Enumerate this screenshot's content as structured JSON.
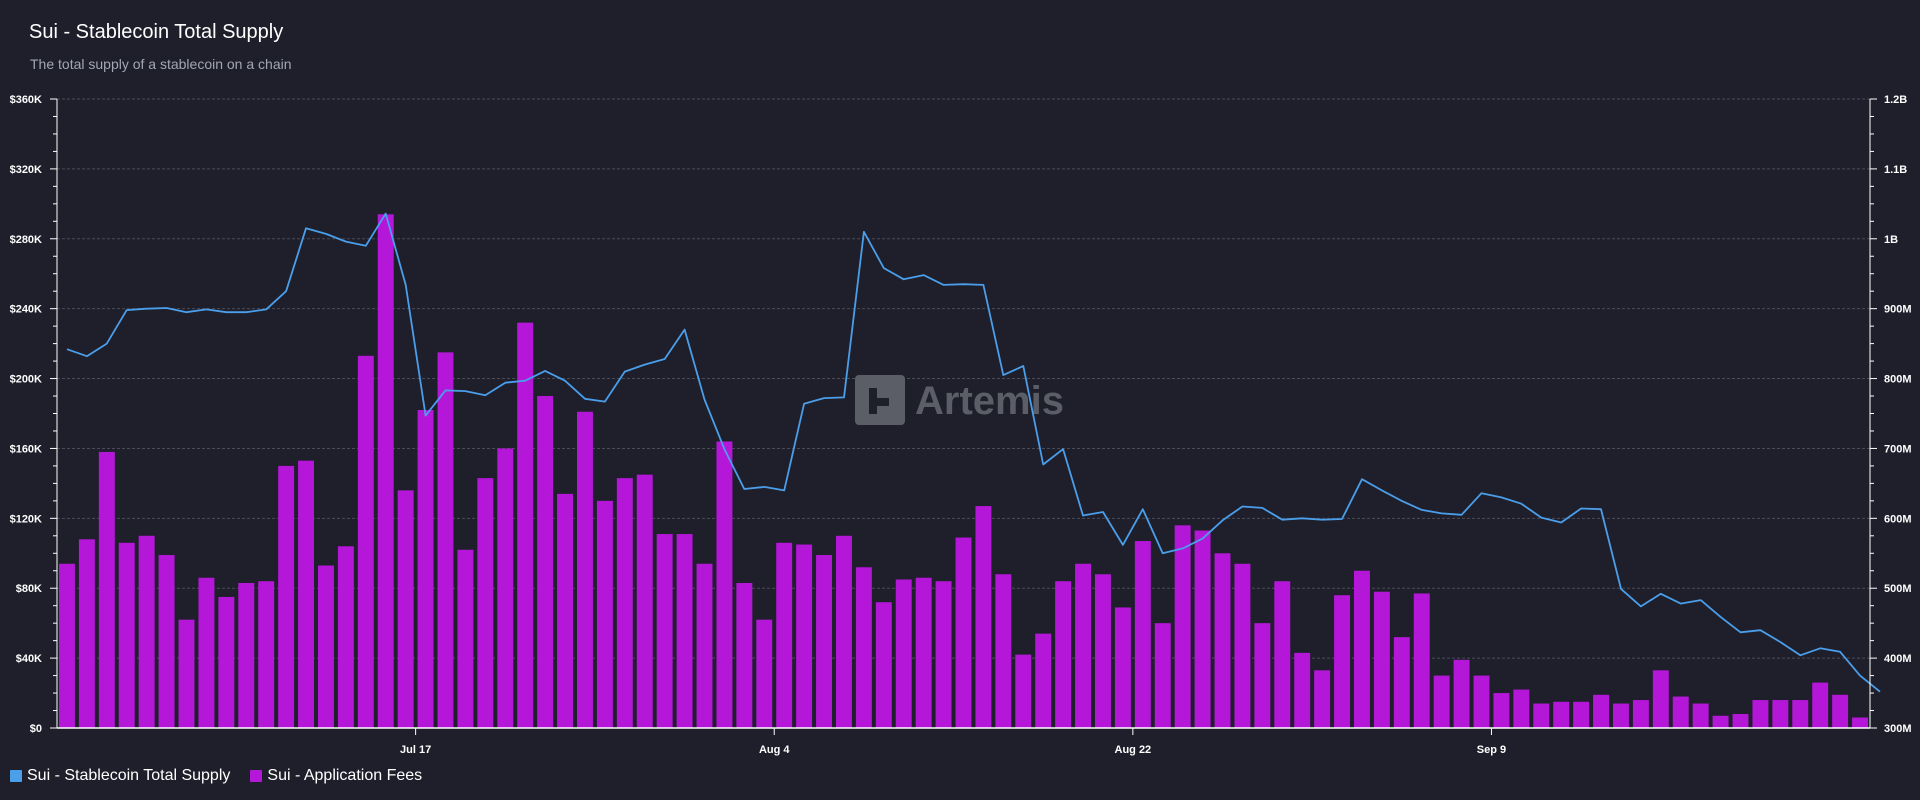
{
  "title": "Sui - Stablecoin Total Supply",
  "subtitle": "The total supply of a stablecoin on a chain",
  "watermark": "Artemis",
  "colors": {
    "background": "#1e1f2b",
    "supply_line": "#4a9eea",
    "fees_bar": "#b517d9",
    "grid": "#4a4c58"
  },
  "legend": [
    {
      "label": "Sui - Stablecoin Total Supply",
      "color": "#4a9eea"
    },
    {
      "label": "Sui - Application Fees",
      "color": "#b517d9"
    }
  ],
  "chart_data": {
    "type": "bar",
    "legend_position": "bottom-left",
    "grid": true,
    "x_tick_labels": [
      "Jul 17",
      "Aug 4",
      "Aug 22",
      "Sep 9"
    ],
    "x_tick_label_indices": [
      18,
      36,
      54,
      72
    ],
    "left_axis": {
      "ticks": [
        "$0",
        "$40K",
        "$80K",
        "$120K",
        "$160K",
        "$200K",
        "$240K",
        "$280K",
        "$320K",
        "$360K"
      ],
      "range": [
        0,
        360000
      ]
    },
    "right_axis": {
      "ticks": [
        "300M",
        "400M",
        "500M",
        "600M",
        "700M",
        "800M",
        "900M",
        "1B",
        "1.1B",
        "1.2B"
      ],
      "range": [
        300000000,
        1200000000
      ]
    },
    "series": [
      {
        "name": "Sui - Application Fees",
        "type": "bar",
        "axis": "left",
        "values": [
          94000,
          108000,
          158000,
          106000,
          110000,
          99000,
          62000,
          86000,
          75000,
          83000,
          84000,
          150000,
          153000,
          93000,
          104000,
          213000,
          294000,
          136000,
          182000,
          215000,
          102000,
          143000,
          160000,
          232000,
          190000,
          134000,
          181000,
          130000,
          143000,
          145000,
          111000,
          111000,
          94000,
          164000,
          83000,
          62000,
          106000,
          105000,
          99000,
          110000,
          92000,
          72000,
          85000,
          86000,
          84000,
          109000,
          127000,
          88000,
          42000,
          54000,
          84000,
          94000,
          88000,
          69000,
          107000,
          60000,
          116000,
          113000,
          100000,
          94000,
          60000,
          84000,
          43000,
          33000,
          76000,
          90000,
          78000,
          52000,
          77000,
          30000,
          39000,
          30000,
          20000,
          22000,
          14000,
          15000,
          15000,
          19000,
          14000,
          16000,
          33000,
          18000,
          14000,
          7000,
          8000,
          16000,
          16000,
          16000,
          26000,
          19000,
          6000
        ]
      },
      {
        "name": "Sui - Stablecoin Total Supply",
        "type": "line",
        "axis": "right",
        "values": [
          842000000,
          832000000,
          850000000,
          898000000,
          900000000,
          901000000,
          895000000,
          899000000,
          895000000,
          895000000,
          899000000,
          925000000,
          1015000000,
          1007000000,
          996000000,
          990000000,
          1036000000,
          934000000,
          747000000,
          783000000,
          782000000,
          776000000,
          794000000,
          797000000,
          811000000,
          797000000,
          771000000,
          767000000,
          810000000,
          820000000,
          828000000,
          870000000,
          770000000,
          699000000,
          642000000,
          645000000,
          640000000,
          764000000,
          772000000,
          773000000,
          1010000000,
          958000000,
          942000000,
          948000000,
          934000000,
          935000000,
          934000000,
          805000000,
          818000000,
          677000000,
          699000000,
          604000000,
          609000000,
          562000000,
          613000000,
          550000000,
          557000000,
          571000000,
          597000000,
          617000000,
          615000000,
          598000000,
          600000000,
          598000000,
          599000000,
          656000000,
          640000000,
          625000000,
          612000000,
          607000000,
          605000000,
          636000000,
          630000000,
          621000000,
          601000000,
          594000000,
          614000000,
          613000000,
          499000000,
          474000000,
          492000000,
          478000000,
          483000000,
          459000000,
          437000000,
          440000000,
          423000000,
          404000000,
          414000000,
          409000000,
          375000000,
          352000000
        ]
      }
    ]
  }
}
